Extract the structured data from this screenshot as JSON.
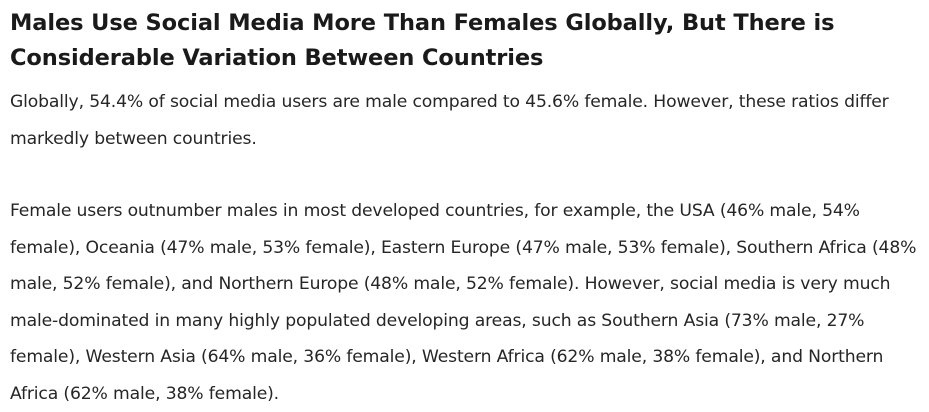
{
  "article": {
    "title": "Males Use Social Media More Than Females Globally, But There is Considerable Variation Between Countries",
    "paragraphs": [
      "Globally, 54.4% of social media users are male compared to 45.6% female. However, these ratios differ markedly between countries.",
      "Female users outnumber males in most developed countries, for example, the USA (46% male, 54% female), Oceania (47% male, 53% female), Eastern Europe (47% male, 53% female), Southern Africa (48% male, 52% female), and Northern Europe (48% male, 52% female). However, social media is very much male-dominated in many highly populated developing areas, such as Southern Asia (73% male, 27% female), Western Asia (64% male, 36% female), Western Africa (62% male, 38% female), and Northern Africa (62% male, 38% female)."
    ]
  }
}
